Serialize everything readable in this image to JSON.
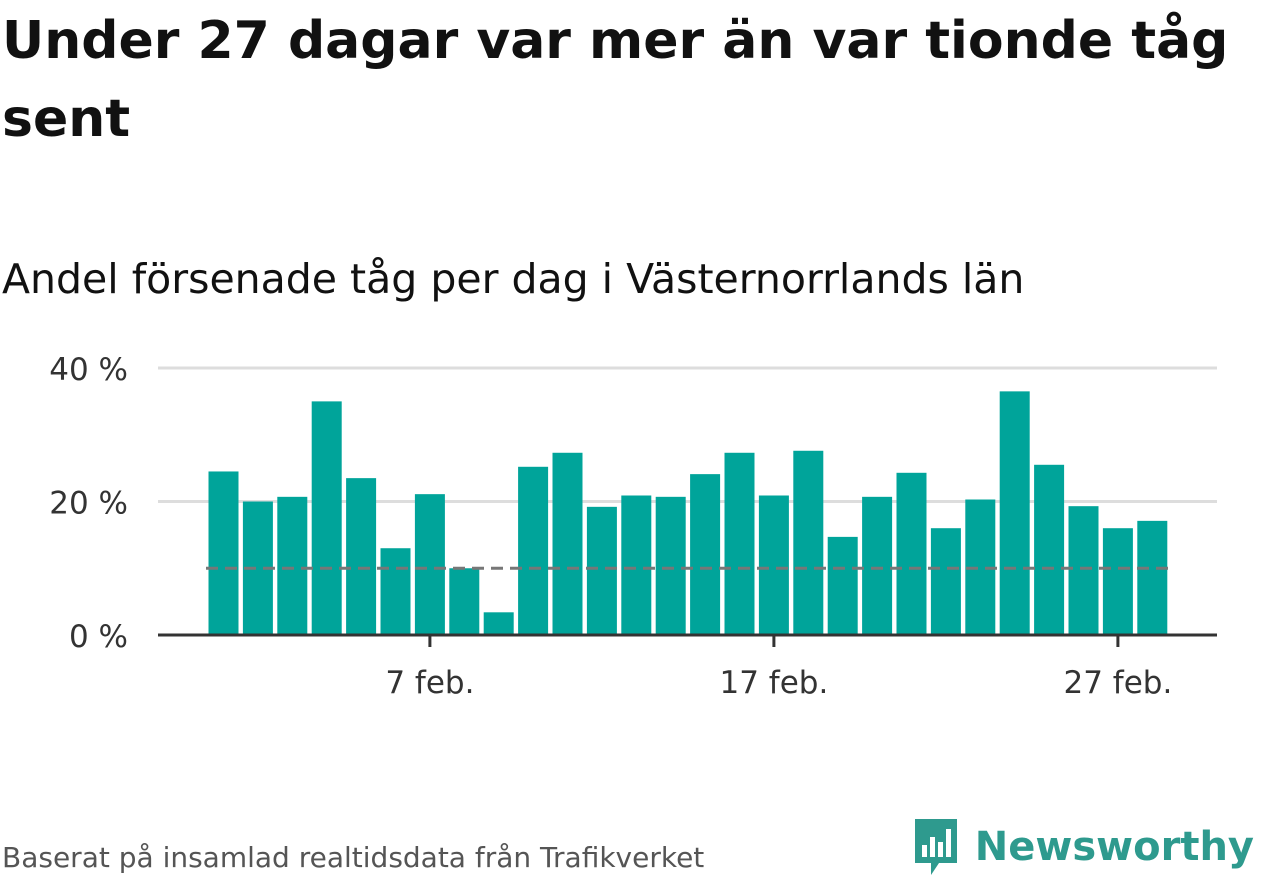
{
  "title": "Under 27 dagar var mer än var tionde tåg sent",
  "subtitle": "Andel försenade tåg per dag i Västernorrlands län",
  "source": "Baserat på insamlad realtidsdata från Trafikverket",
  "brand": {
    "name": "Newsworthy",
    "icon": "newsworthy-logo-icon"
  },
  "colors": {
    "bar": "#00a49a",
    "reference_line": "#777777",
    "grid": "#dddddd",
    "axis": "#333333"
  },
  "chart_data": {
    "type": "bar",
    "x": [
      "2024-02-01",
      "2024-02-02",
      "2024-02-03",
      "2024-02-04",
      "2024-02-05",
      "2024-02-06",
      "2024-02-07",
      "2024-02-08",
      "2024-02-09",
      "2024-02-10",
      "2024-02-11",
      "2024-02-12",
      "2024-02-13",
      "2024-02-14",
      "2024-02-15",
      "2024-02-16",
      "2024-02-17",
      "2024-02-18",
      "2024-02-19",
      "2024-02-20",
      "2024-02-21",
      "2024-02-22",
      "2024-02-23",
      "2024-02-24",
      "2024-02-25",
      "2024-02-26",
      "2024-02-27",
      "2024-02-28"
    ],
    "values": [
      24.5,
      20,
      20.7,
      35,
      23.5,
      13,
      21.1,
      10,
      3.4,
      25.2,
      27.3,
      19.2,
      20.9,
      20.7,
      24.1,
      27.3,
      20.9,
      27.6,
      14.7,
      20.7,
      24.3,
      16,
      20.3,
      36.5,
      25.5,
      19.3,
      16,
      17.1
    ],
    "ylim": [
      0,
      40
    ],
    "yticks": [
      0,
      20,
      40
    ],
    "ytick_labels": [
      "0 %",
      "20 %",
      "40 %"
    ],
    "xticks": [
      "2024-02-07",
      "2024-02-17",
      "2024-02-27"
    ],
    "xtick_labels": [
      "7 feb.",
      "17 feb.",
      "27 feb."
    ],
    "reference_line": 10,
    "grid": true,
    "legend": "none"
  }
}
